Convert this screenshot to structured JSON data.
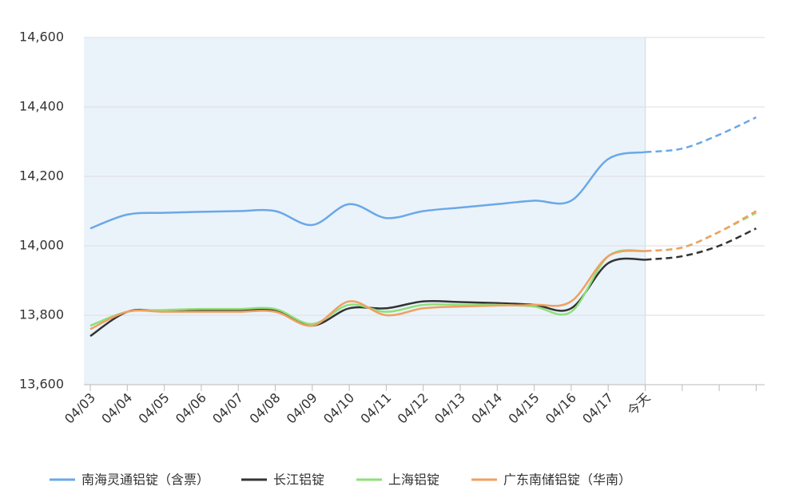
{
  "chart_data": {
    "type": "line",
    "categories": [
      "04/03",
      "04/04",
      "04/05",
      "04/06",
      "04/07",
      "04/08",
      "04/09",
      "04/10",
      "04/11",
      "04/12",
      "04/13",
      "04/14",
      "04/15",
      "04/16",
      "04/17",
      "今天",
      null,
      null,
      null
    ],
    "series": [
      {
        "name": "南海灵通铝锭（含票）",
        "color": "#6aa8e8",
        "values": [
          14050,
          14090,
          14095,
          14098,
          14100,
          14100,
          14060,
          14120,
          14080,
          14100,
          14110,
          14120,
          14130,
          14130,
          14250,
          14270,
          14280,
          14320,
          14370
        ]
      },
      {
        "name": "长江铝锭",
        "color": "#333333",
        "values": [
          13740,
          13810,
          13812,
          13813,
          13813,
          13815,
          13770,
          13820,
          13820,
          13840,
          13838,
          13835,
          13830,
          13820,
          13950,
          13960,
          13970,
          14000,
          14050
        ]
      },
      {
        "name": "上海铝锭",
        "color": "#8ee07a",
        "values": [
          13770,
          13810,
          13815,
          13818,
          13818,
          13818,
          13775,
          13830,
          13810,
          13830,
          13830,
          13830,
          13825,
          13810,
          13970,
          13985,
          13995,
          14040,
          14095
        ]
      },
      {
        "name": "广东南储铝锭（华南）",
        "color": "#f0a060",
        "values": [
          13760,
          13810,
          13810,
          13810,
          13810,
          13810,
          13770,
          13840,
          13800,
          13820,
          13825,
          13828,
          13830,
          13840,
          13970,
          13985,
          13995,
          14040,
          14100
        ]
      }
    ],
    "ylim": [
      13600,
      14600
    ],
    "yticks": [
      {
        "value": 13600,
        "label": "13,600"
      },
      {
        "value": 13800,
        "label": "13,800"
      },
      {
        "value": 14000,
        "label": "14,000"
      },
      {
        "value": 14200,
        "label": "14,200"
      },
      {
        "value": 14400,
        "label": "14,400"
      },
      {
        "value": 14600,
        "label": "14,600"
      }
    ],
    "grid": true,
    "legend": "bottom"
  }
}
